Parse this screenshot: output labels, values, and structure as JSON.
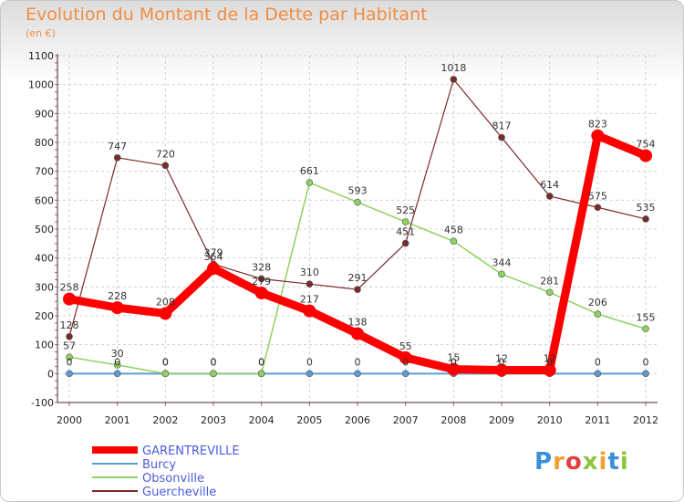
{
  "title": "Evolution du Montant de la Dette par Habitant",
  "subtitle": "(en €)",
  "logo": "Proxiti",
  "chart_data": {
    "type": "line",
    "title": "Evolution du Montant de la Dette par Habitant",
    "ylabel": "(en €)",
    "x": [
      "2000",
      "2001",
      "2002",
      "2003",
      "2004",
      "2005",
      "2006",
      "2007",
      "2008",
      "2009",
      "2010",
      "2011",
      "2012"
    ],
    "ylim": [
      -100,
      1100
    ],
    "yticks": [
      -100,
      0,
      100,
      200,
      300,
      400,
      500,
      600,
      700,
      800,
      900,
      1000,
      1100
    ],
    "grid": true,
    "legend": "bottom-left",
    "series": [
      {
        "name": "GARENTREVILLE",
        "color": "#ff0000",
        "values": [
          258,
          228,
          208,
          364,
          279,
          217,
          138,
          55,
          15,
          12,
          12,
          823,
          754
        ]
      },
      {
        "name": "Burcy",
        "color": "#5b9bd5",
        "values": [
          0,
          0,
          0,
          0,
          0,
          0,
          0,
          0,
          0,
          0,
          0,
          0,
          0
        ]
      },
      {
        "name": "Obsonville",
        "color": "#8dd35f",
        "values": [
          57,
          30,
          0,
          0,
          0,
          661,
          593,
          525,
          458,
          344,
          281,
          206,
          155
        ]
      },
      {
        "name": "Guercheville",
        "color": "#7b2a2a",
        "values": [
          128,
          747,
          720,
          379,
          328,
          310,
          291,
          451,
          1018,
          817,
          614,
          575,
          535
        ]
      }
    ]
  }
}
